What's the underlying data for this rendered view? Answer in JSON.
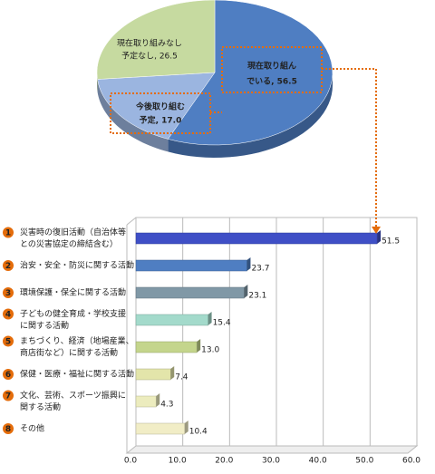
{
  "chart_data": [
    {
      "type": "pie",
      "values": [
        56.5,
        17.0,
        26.5
      ],
      "value_labels": [
        [
          "現在取り組ん",
          "でいる, 56.5"
        ],
        [
          "今後取り組む",
          "予定, 17.0"
        ],
        [
          "現在取り組みなし",
          "予定なし, 26.5"
        ]
      ],
      "colors": [
        "#4f7ec2",
        "#9bb5e0",
        "#c6daa0"
      ]
    },
    {
      "type": "hbar",
      "numbers": [
        "1",
        "2",
        "3",
        "4",
        "5",
        "6",
        "7",
        "8"
      ],
      "categories": [
        [
          "災害時の復旧活動（自治体等",
          "との災害協定の締結含む）"
        ],
        [
          "治安・安全・防災に関する活動"
        ],
        [
          "環境保護・保全に関する活動"
        ],
        [
          "子どもの健全育成・学校支援",
          "に関する活動"
        ],
        [
          "まちづくり、経済（地場産業、",
          "商店街など）に関する活動"
        ],
        [
          "保健・医療・福祉に関する活動"
        ],
        [
          "文化、芸術、スポーツ振興に",
          "関する活動"
        ],
        [
          "その他"
        ]
      ],
      "values": [
        51.5,
        23.7,
        23.1,
        15.4,
        13.0,
        7.4,
        4.3,
        10.4
      ],
      "value_labels": [
        "51.5",
        "23.7",
        "23.1",
        "15.4",
        "13.0",
        "7.4",
        "4.3",
        "10.4"
      ],
      "colors": [
        "#3f4fc6",
        "#4f7ec2",
        "#8098a6",
        "#a3dacb",
        "#c4d58c",
        "#e3e5aa",
        "#ececbe",
        "#f1edc6"
      ],
      "xlim": [
        0,
        60
      ],
      "xticks": [
        {
          "value": 0,
          "label": "0.0"
        },
        {
          "value": 10,
          "label": "10.0"
        },
        {
          "value": 20,
          "label": "20.0"
        },
        {
          "value": 30,
          "label": "30.0"
        },
        {
          "value": 40,
          "label": "40.0"
        },
        {
          "value": 50,
          "label": "50.0"
        },
        {
          "value": 60,
          "label": "60.0"
        }
      ],
      "grid": true
    }
  ]
}
